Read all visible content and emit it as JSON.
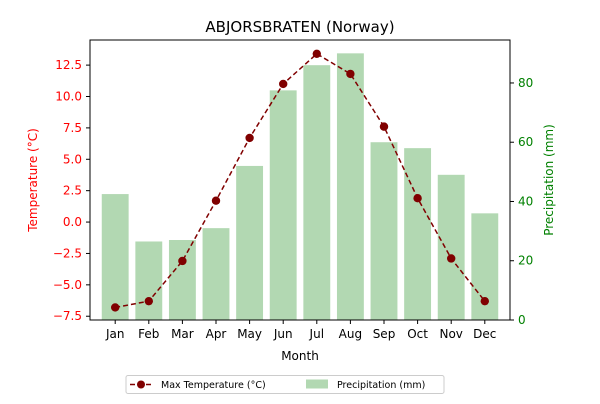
{
  "chart_data": {
    "type": "bar",
    "title": "ABJORSBRATEN (Norway)",
    "xlabel": "Month",
    "ylabel_left": "Temperature (°C)",
    "ylabel_right": "Precipitation (mm)",
    "categories": [
      "Jan",
      "Feb",
      "Mar",
      "Apr",
      "May",
      "Jun",
      "Jul",
      "Aug",
      "Sep",
      "Oct",
      "Nov",
      "Dec"
    ],
    "ylim_left": [
      -7.8,
      14.5
    ],
    "ylim_right": [
      0,
      94.5
    ],
    "yticks_left": [
      -7.5,
      -5.0,
      -2.5,
      0.0,
      2.5,
      5.0,
      7.5,
      10.0,
      12.5
    ],
    "ytick_labels_left": [
      "−7.5",
      "−5.0",
      "−2.5",
      "0.0",
      "2.5",
      "5.0",
      "7.5",
      "10.0",
      "12.5"
    ],
    "yticks_right": [
      0,
      20,
      40,
      60,
      80
    ],
    "ytick_labels_right": [
      "0",
      "20",
      "40",
      "60",
      "80"
    ],
    "series": [
      {
        "name": "Max Temperature (°C)",
        "type": "line",
        "axis": "left",
        "values": [
          -6.8,
          -6.3,
          -3.1,
          1.7,
          6.7,
          11.0,
          13.4,
          11.8,
          7.6,
          1.9,
          -2.9,
          -6.3
        ],
        "color": "#800000",
        "linestyle": "dashed",
        "marker": "circle"
      },
      {
        "name": "Precipitation (mm)",
        "type": "bar",
        "axis": "right",
        "values": [
          42.5,
          26.5,
          27.0,
          31.0,
          52.0,
          77.5,
          86.0,
          90.0,
          60.0,
          58.0,
          49.0,
          36.0
        ],
        "color": "#b2d8b2"
      }
    ],
    "colors": {
      "left_axis": "#ff0000",
      "right_axis": "#008000"
    },
    "legend_position": "bottom-center",
    "grid": false
  }
}
